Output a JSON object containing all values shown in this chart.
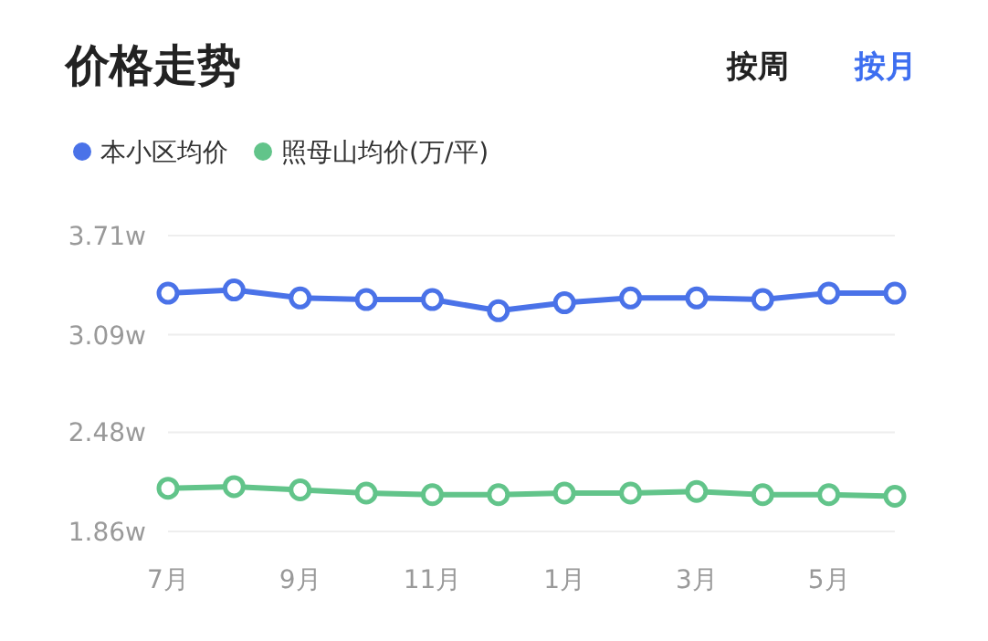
{
  "chart_data": {
    "type": "line",
    "title": "价格走势",
    "annotations": [
      "按周",
      "按月"
    ],
    "categories": [
      "7月",
      null,
      "9月",
      null,
      "11月",
      null,
      "1月",
      null,
      "3月",
      null,
      "5月",
      null
    ],
    "series": [
      {
        "name": "本小区均价",
        "color": "#4a72e8",
        "values": [
          3.35,
          3.37,
          3.32,
          3.31,
          3.31,
          3.24,
          3.29,
          3.32,
          3.32,
          3.31,
          3.35,
          3.35
        ]
      },
      {
        "name": "照母山均价(万/平)",
        "color": "#62c48a",
        "values": [
          2.13,
          2.14,
          2.12,
          2.1,
          2.09,
          2.09,
          2.1,
          2.1,
          2.11,
          2.09,
          2.09,
          2.08
        ]
      }
    ],
    "ylim": [
      1.86,
      3.71
    ],
    "yticks": [
      {
        "value": 1.86,
        "label": "1.86w"
      },
      {
        "value": 2.48,
        "label": "2.48w"
      },
      {
        "value": 3.09,
        "label": "3.09w"
      },
      {
        "value": 3.71,
        "label": "3.71w"
      }
    ],
    "grid": "y",
    "legend": "top left",
    "marker": "circle"
  }
}
